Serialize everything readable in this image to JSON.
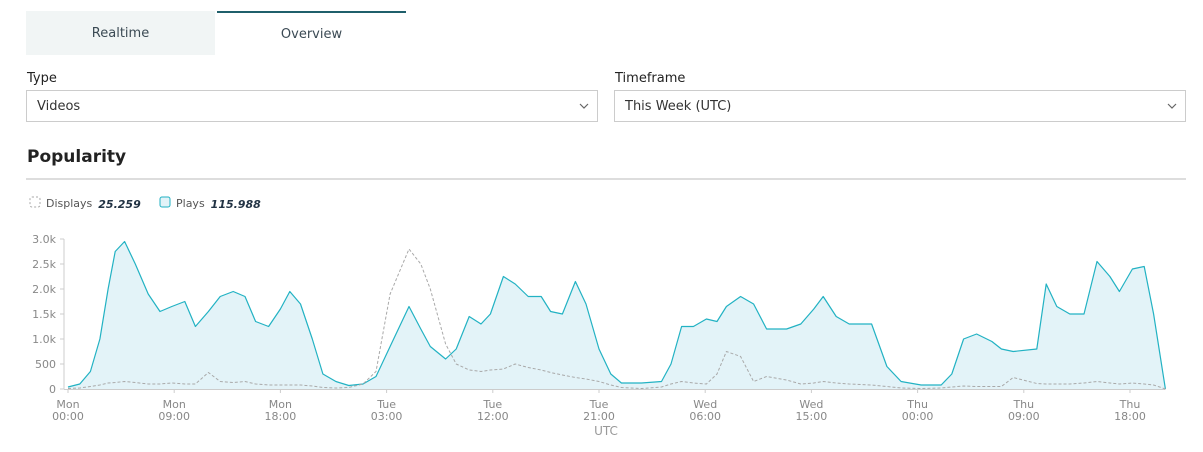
{
  "tabs": [
    "Realtime",
    "Overview"
  ],
  "filters": [
    {
      "label": "Type",
      "value": "Videos"
    },
    {
      "label": "Timeframe",
      "value": "This Week (UTC)"
    }
  ],
  "section_title": "Popularity",
  "chart_data": {
    "type": "area",
    "x_label": "UTC",
    "x": [
      0,
      1.0,
      1.9,
      2.7,
      3.4,
      4.0,
      4.8,
      5.7,
      6.8,
      7.8,
      8.8,
      9.9,
      10.8,
      11.9,
      12.9,
      14.0,
      15.0,
      15.9,
      17.0,
      18.0,
      18.8,
      19.7,
      20.7,
      21.6,
      22.7,
      23.8,
      25.0,
      26.1,
      27.3,
      28.9,
      29.9,
      30.7,
      32.0,
      32.9,
      34.0,
      35.0,
      35.8,
      36.9,
      37.9,
      39.0,
      40.1,
      40.9,
      41.9,
      43.0,
      43.9,
      45.0,
      46.0,
      46.9,
      48.6,
      50.3,
      51.1,
      52.0,
      53.0,
      54.1,
      55.0,
      55.8,
      57.0,
      58.1,
      59.2,
      60.9,
      62.1,
      63.2,
      64.0,
      65.1,
      66.2,
      68.1,
      69.4,
      70.6,
      72.3,
      74.0,
      74.9,
      75.9,
      77.0,
      78.3,
      79.1,
      80.1,
      82.1,
      82.9,
      83.8,
      84.9,
      86.1,
      87.2,
      88.3,
      89.1,
      90.2,
      91.2,
      92.0,
      93.0
    ],
    "series": [
      {
        "name": "Displays",
        "total": 25.259,
        "color": "#a9a9a9",
        "style": "dashed",
        "values": [
          10,
          20,
          50,
          80,
          120,
          130,
          150,
          130,
          100,
          100,
          120,
          100,
          100,
          330,
          150,
          130,
          150,
          100,
          80,
          80,
          80,
          80,
          60,
          30,
          20,
          30,
          100,
          350,
          1900,
          2800,
          2500,
          2000,
          900,
          500,
          380,
          350,
          380,
          400,
          500,
          430,
          380,
          330,
          280,
          230,
          200,
          150,
          80,
          30,
          10,
          40,
          100,
          150,
          120,
          100,
          300,
          750,
          650,
          150,
          250,
          180,
          100,
          120,
          150,
          120,
          100,
          80,
          50,
          20,
          10,
          20,
          40,
          60,
          50,
          50,
          50,
          230,
          110,
          100,
          100,
          100,
          120,
          150,
          120,
          100,
          120,
          100,
          80,
          0
        ]
      },
      {
        "name": "Plays",
        "total": 115.988,
        "color": "#22b2c3",
        "fill": "#e3f3f8",
        "style": "solid",
        "values": [
          40,
          100,
          350,
          1000,
          2000,
          2750,
          2950,
          2500,
          1900,
          1550,
          1650,
          1750,
          1250,
          1550,
          1850,
          1950,
          1850,
          1350,
          1250,
          1600,
          1950,
          1700,
          1000,
          300,
          150,
          70,
          100,
          250,
          850,
          1650,
          1200,
          850,
          600,
          800,
          1450,
          1300,
          1500,
          2250,
          2100,
          1850,
          1850,
          1550,
          1500,
          2150,
          1700,
          800,
          300,
          120,
          120,
          150,
          500,
          1250,
          1250,
          1400,
          1350,
          1650,
          1850,
          1700,
          1200,
          1200,
          1300,
          1600,
          1850,
          1450,
          1300,
          1300,
          450,
          150,
          80,
          80,
          300,
          1000,
          1100,
          950,
          800,
          750,
          800,
          2100,
          1650,
          1500,
          1500,
          2550,
          2250,
          1950,
          2400,
          2450,
          1500,
          0
        ]
      }
    ],
    "xlim": [
      0,
      93
    ],
    "xticks": [
      {
        "value": 0,
        "label": "Mon\n00:00"
      },
      {
        "value": 9,
        "label": "Mon\n09:00"
      },
      {
        "value": 18,
        "label": "Mon\n18:00"
      },
      {
        "value": 27,
        "label": "Tue\n03:00"
      },
      {
        "value": 36,
        "label": "Tue\n12:00"
      },
      {
        "value": 45,
        "label": "Tue\n21:00"
      },
      {
        "value": 54,
        "label": "Wed\n06:00"
      },
      {
        "value": 63,
        "label": "Wed\n15:00"
      },
      {
        "value": 72,
        "label": "Thu\n00:00"
      },
      {
        "value": 81,
        "label": "Thu\n09:00"
      },
      {
        "value": 90,
        "label": "Thu\n18:00"
      }
    ],
    "ylim": [
      0,
      3000
    ],
    "yticks": [
      0,
      500,
      {
        "value": 1000,
        "label": "1.0k"
      },
      {
        "value": 1500,
        "label": "1.5k"
      },
      {
        "value": 2000,
        "label": "2.0k"
      },
      {
        "value": 2500,
        "label": "2.5k"
      },
      {
        "value": 3000,
        "label": "3.0k"
      }
    ]
  }
}
